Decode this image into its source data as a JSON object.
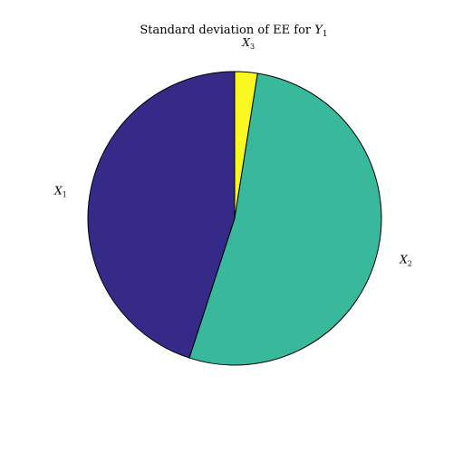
{
  "chart_data": {
    "type": "pie",
    "title_prefix": "Standard deviation of EE for ",
    "title_variable": "Y",
    "title_subscript": "1",
    "slices": [
      {
        "variable": "X",
        "subscript": "3",
        "value": 2.5,
        "color": "#F9F821"
      },
      {
        "variable": "X",
        "subscript": "2",
        "value": 52.5,
        "color": "#38B99C"
      },
      {
        "variable": "X",
        "subscript": "1",
        "value": 45.0,
        "color": "#352A87"
      }
    ]
  }
}
